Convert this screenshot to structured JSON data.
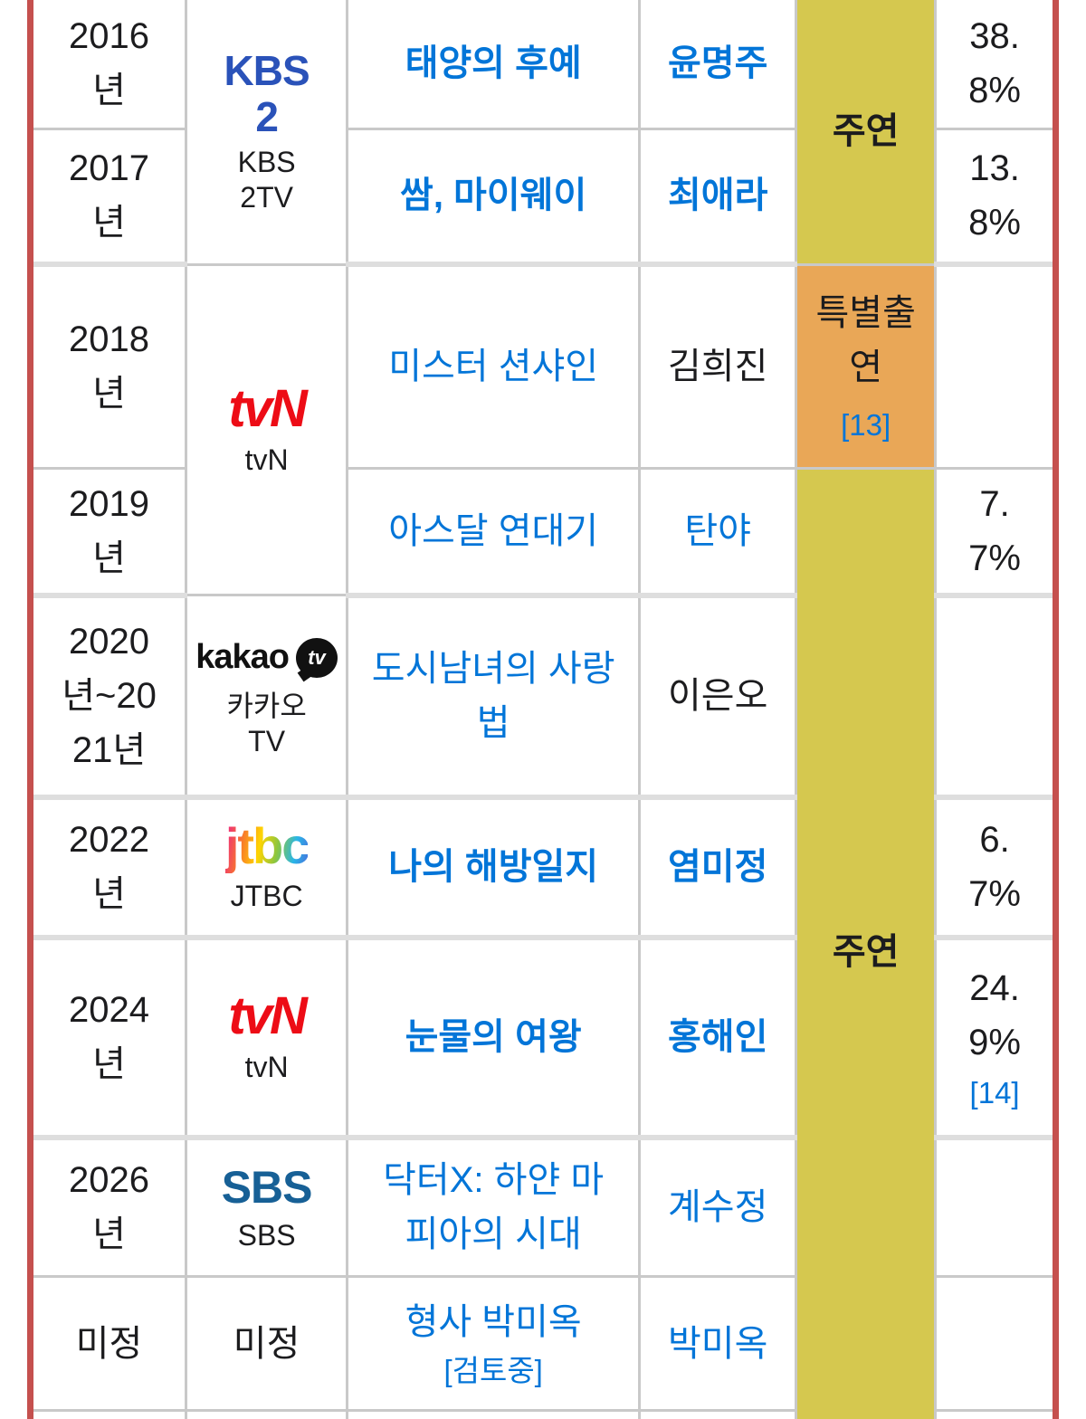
{
  "colors": {
    "outer_border": "#c5504e",
    "lead_bg": "#d5c84f",
    "special_bg": "#e9a757",
    "link": "#0275d8",
    "kbs_blue": "#2a52b9",
    "tvn_red": "#ed0c16",
    "sbs_blue": "#176096",
    "text": "#1c1c1e"
  },
  "filmography": {
    "rows": [
      {
        "year": "2016년",
        "title": "태양의 후예",
        "role": "윤명주",
        "rating": "38.8%"
      },
      {
        "year": "2017년",
        "title": "쌈, 마이웨이",
        "role": "최애라",
        "rating": "13.8%"
      },
      {
        "year": "2018년",
        "title": "미스터 션샤인",
        "role": "김희진",
        "rating": ""
      },
      {
        "year": "2019년",
        "title": "아스달 연대기",
        "role": "탄야",
        "rating": "7.7%"
      },
      {
        "year": "2020년~2021년",
        "title": "도시남녀의 사랑법",
        "role": "이은오",
        "rating": ""
      },
      {
        "year": "2022년",
        "title": "나의 해방일지",
        "role": "염미정",
        "rating": "6.7%"
      },
      {
        "year": "2024년",
        "title": "눈물의 여왕",
        "role": "홍해인",
        "rating": "24.9%",
        "rating_note": "[14]"
      },
      {
        "year": "2026년",
        "title": "닥터X: 하얀 마피아의 시대",
        "role": "계수정",
        "rating": ""
      },
      {
        "year": "미정",
        "title": "형사 박미옥",
        "title_note": "[검토중]",
        "role": "박미옥",
        "rating": ""
      }
    ],
    "networks": [
      {
        "logo_text": "KBS 2",
        "caption": "KBS 2TV"
      },
      {
        "logo_text": "tvN",
        "caption": "tvN"
      },
      {
        "logo_text": "kakao",
        "bubble_text": "tv",
        "caption": "카카오TV"
      },
      {
        "logo_text": "jtbc",
        "caption": "JTBC"
      },
      {
        "logo_text": "tvN",
        "caption": "tvN"
      },
      {
        "logo_text": "SBS",
        "caption": "SBS"
      },
      {
        "text": "미정"
      }
    ],
    "role_types": [
      {
        "label": "주연"
      },
      {
        "label": "특별출연",
        "note": "[13]"
      },
      {
        "label": "주연"
      }
    ]
  }
}
